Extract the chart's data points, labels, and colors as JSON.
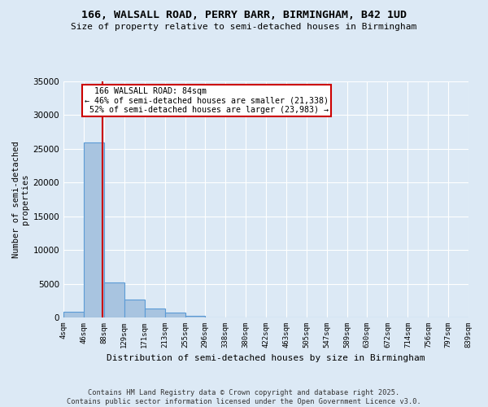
{
  "title": "166, WALSALL ROAD, PERRY BARR, BIRMINGHAM, B42 1UD",
  "subtitle": "Size of property relative to semi-detached houses in Birmingham",
  "xlabel": "Distribution of semi-detached houses by size in Birmingham",
  "ylabel": "Number of semi-detached\nproperties",
  "property_size": 84,
  "property_label": "166 WALSALL ROAD: 84sqm",
  "pct_smaller": 46,
  "count_smaller": 21338,
  "pct_larger": 52,
  "count_larger": 23983,
  "bin_labels": [
    "4sqm",
    "46sqm",
    "88sqm",
    "129sqm",
    "171sqm",
    "213sqm",
    "255sqm",
    "296sqm",
    "338sqm",
    "380sqm",
    "422sqm",
    "463sqm",
    "505sqm",
    "547sqm",
    "589sqm",
    "630sqm",
    "672sqm",
    "714sqm",
    "756sqm",
    "797sqm",
    "839sqm"
  ],
  "bin_edges": [
    4,
    46,
    88,
    129,
    171,
    213,
    255,
    296,
    338,
    380,
    422,
    463,
    505,
    547,
    589,
    630,
    672,
    714,
    756,
    797,
    839
  ],
  "bar_values": [
    900,
    26000,
    5200,
    2600,
    1350,
    700,
    200,
    0,
    0,
    0,
    0,
    0,
    0,
    0,
    0,
    0,
    0,
    0,
    0,
    0
  ],
  "bar_color": "#a8c4e0",
  "bar_edge_color": "#5b9bd5",
  "vline_color": "#cc0000",
  "background_color": "#dce9f5",
  "annotation_box_color": "#ffffff",
  "annotation_box_edge": "#cc0000",
  "ylim": [
    0,
    35000
  ],
  "yticks": [
    0,
    5000,
    10000,
    15000,
    20000,
    25000,
    30000,
    35000
  ],
  "footer": "Contains HM Land Registry data © Crown copyright and database right 2025.\nContains public sector information licensed under the Open Government Licence v3.0."
}
